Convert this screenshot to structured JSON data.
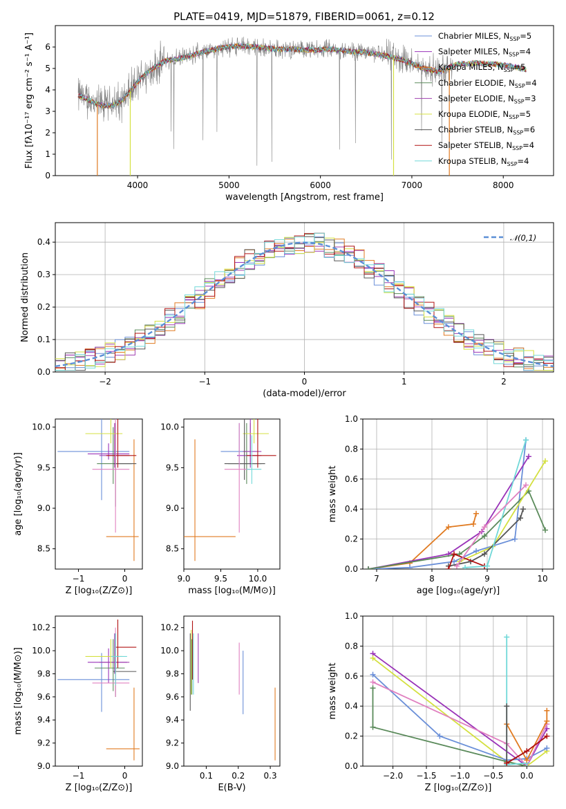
{
  "title": "PLATE=0419, MJD=51879, FIBERID=0061, z=0.12",
  "colors": {
    "chabrier_miles": "#6a8fd8",
    "salpeter_miles": "#9932b8",
    "kroupa_miles": "#e07a20",
    "chabrier_elodie": "#5a8a5a",
    "salpeter_elodie": "#a040b0",
    "kroupa_elodie": "#d4e040",
    "chabrier_stelib": "#555555",
    "salpeter_stelib": "#b01010",
    "kroupa_stelib": "#70d8d8",
    "data": "#808080",
    "pink": "#e080c0",
    "grid": "#b0b0b0",
    "normal_curve": "#5b8fd6"
  },
  "chart_data": [
    {
      "name": "spectrum",
      "type": "line",
      "title": "PLATE=0419, MJD=51879, FIBERID=0061, z=0.12",
      "xlabel": "wavelength [Angstrom, rest frame]",
      "ylabel": "Flux [fλ10⁻¹⁷ erg cm⁻² s⁻¹ A⁻¹]",
      "xlim": [
        3100,
        8550
      ],
      "ylim": [
        0,
        7
      ],
      "xticks": [
        "4000",
        "5000",
        "6000",
        "7000",
        "8000"
      ],
      "yticks": [
        "0",
        "1",
        "2",
        "3",
        "4",
        "5",
        "6"
      ],
      "legend_position": "top-right",
      "legend": [
        {
          "base": "Chabrier MILES, N",
          "sub": "SSP",
          "tail": "=5"
        },
        {
          "base": "Salpeter MILES, N",
          "sub": "SSP",
          "tail": "=4"
        },
        {
          "base": "Kroupa MILES, N",
          "sub": "SSP",
          "tail": "=5"
        },
        {
          "base": "Chabrier ELODIE, N",
          "sub": "SSP",
          "tail": "=4"
        },
        {
          "base": "Salpeter ELODIE, N",
          "sub": "SSP",
          "tail": "=3"
        },
        {
          "base": "Kroupa ELODIE, N",
          "sub": "SSP",
          "tail": "=5"
        },
        {
          "base": "Chabrier STELIB, N",
          "sub": "SSP",
          "tail": "=6"
        },
        {
          "base": "Salpeter STELIB, N",
          "sub": "SSP",
          "tail": "=4"
        },
        {
          "base": "Kroupa STELIB, N",
          "sub": "SSP",
          "tail": "=4"
        }
      ],
      "continuum": {
        "x": [
          3350,
          3450,
          3550,
          3650,
          3750,
          3850,
          3950,
          4050,
          4150,
          4300,
          4500,
          4700,
          4900,
          5100,
          5300,
          5500,
          5700,
          5900,
          6100,
          6300,
          6500,
          6700,
          6900,
          7100,
          7300,
          7500,
          7700,
          7900,
          8100,
          8250
        ],
        "y": [
          3.75,
          3.55,
          3.35,
          3.25,
          3.3,
          3.6,
          4.1,
          4.6,
          4.95,
          5.35,
          5.5,
          5.75,
          5.95,
          6.05,
          6.0,
          5.9,
          5.9,
          5.85,
          5.9,
          5.8,
          5.75,
          5.6,
          5.4,
          5.05,
          4.85,
          5.2,
          5.25,
          5.2,
          5.1,
          4.95
        ]
      }
    },
    {
      "name": "residual-histogram",
      "type": "bar",
      "xlabel": "(data-model)/error",
      "ylabel": "Normed distribution",
      "xlim": [
        -2.5,
        2.5
      ],
      "ylim": [
        0,
        0.46
      ],
      "xticks": [
        "−2",
        "−1",
        "0",
        "1",
        "2"
      ],
      "yticks": [
        "0.0",
        "0.1",
        "0.2",
        "0.3",
        "0.4"
      ],
      "legend_position": "top-right",
      "curve_label": "𝒩(0,1)",
      "bin_width": 0.1,
      "bin_start": -2.5
    },
    {
      "name": "age-vs-Z",
      "type": "scatter",
      "xlabel": "Z [log₁₀(Z/Z⊙)]",
      "ylabel": "age  [log₁₀(age/yr)]",
      "xlim": [
        -1.5,
        0.38
      ],
      "ylim": [
        8.25,
        10.1
      ],
      "xticks": [
        "−1",
        "0"
      ],
      "yticks": [
        "8.5",
        "9.0",
        "9.5",
        "10.0"
      ],
      "points": [
        {
          "c": "chabrier_miles",
          "x": -0.5,
          "y": 9.7,
          "xlo": -1.45,
          "xhi": 0.1,
          "ylo": 9.1,
          "yhi": 10.1
        },
        {
          "c": "salpeter_miles",
          "x": -0.35,
          "y": 9.67,
          "xlo": -0.8,
          "xhi": 0.1,
          "ylo": 9.6,
          "yhi": 9.8
        },
        {
          "c": "kroupa_miles",
          "x": 0.2,
          "y": 8.65,
          "xlo": -0.4,
          "xhi": 0.3,
          "ylo": 8.35,
          "yhi": 9.85
        },
        {
          "c": "chabrier_elodie",
          "x": -0.25,
          "y": 9.55,
          "xlo": -0.6,
          "xhi": 0.15,
          "ylo": 9.3,
          "yhi": 10.0
        },
        {
          "c": "salpeter_elodie",
          "x": -0.22,
          "y": 9.65,
          "xlo": -0.55,
          "xhi": 0.1,
          "ylo": 9.5,
          "yhi": 10.05
        },
        {
          "c": "kroupa_elodie",
          "x": -0.3,
          "y": 9.92,
          "xlo": -0.85,
          "xhi": -0.05,
          "ylo": 9.8,
          "yhi": 10.1
        },
        {
          "c": "chabrier_stelib",
          "x": -0.2,
          "y": 9.55,
          "xlo": -0.25,
          "xhi": 0.25,
          "ylo": 9.02,
          "yhi": 10.05
        },
        {
          "c": "salpeter_stelib",
          "x": -0.15,
          "y": 9.65,
          "xlo": -0.4,
          "xhi": 0.25,
          "ylo": 9.5,
          "yhi": 10.1
        },
        {
          "c": "pink",
          "x": -0.2,
          "y": 9.48,
          "xlo": -0.7,
          "xhi": 0.1,
          "ylo": 8.7,
          "yhi": 10.1
        }
      ]
    },
    {
      "name": "age-vs-mass",
      "type": "scatter",
      "xlabel": "mass [log₁₀(M/M⊙)]",
      "ylabel": "",
      "xlim": [
        9.0,
        10.3
      ],
      "ylim": [
        8.25,
        10.1
      ],
      "xticks": [
        "9.0",
        "9.5",
        "10.0"
      ],
      "yticks": [
        "8.5",
        "9.0",
        "9.5",
        "10.0"
      ],
      "points": [
        {
          "c": "chabrier_miles",
          "x": 9.75,
          "y": 9.7,
          "xlo": 9.5,
          "xhi": 9.98,
          "ylo": 9.5,
          "yhi": 10.05
        },
        {
          "c": "salpeter_miles",
          "x": 9.9,
          "y": 9.65,
          "xlo": 9.72,
          "xhi": 10.05,
          "ylo": 9.5,
          "yhi": 10.1
        },
        {
          "c": "kroupa_miles",
          "x": 9.15,
          "y": 8.65,
          "xlo": 9.0,
          "xhi": 9.7,
          "ylo": 8.35,
          "yhi": 9.85
        },
        {
          "c": "chabrier_elodie",
          "x": 9.85,
          "y": 9.55,
          "xlo": 9.6,
          "xhi": 10.05,
          "ylo": 9.3,
          "yhi": 10.05
        },
        {
          "c": "salpeter_elodie",
          "x": 9.9,
          "y": 9.7,
          "xlo": 9.8,
          "xhi": 10.05,
          "ylo": 9.55,
          "yhi": 10.05
        },
        {
          "c": "kroupa_elodie",
          "x": 9.95,
          "y": 9.92,
          "xlo": 9.8,
          "xhi": 10.15,
          "ylo": 9.8,
          "yhi": 10.1
        },
        {
          "c": "chabrier_stelib",
          "x": 9.82,
          "y": 9.55,
          "xlo": 9.55,
          "xhi": 10.1,
          "ylo": 9.35,
          "yhi": 10.1
        },
        {
          "c": "salpeter_stelib",
          "x": 10.0,
          "y": 9.65,
          "xlo": 9.85,
          "xhi": 10.25,
          "ylo": 9.5,
          "yhi": 10.1
        },
        {
          "c": "pink",
          "x": 9.75,
          "y": 9.48,
          "xlo": 9.55,
          "xhi": 9.9,
          "ylo": 8.7,
          "yhi": 10.05
        },
        {
          "c": "kroupa_stelib",
          "x": 9.92,
          "y": 9.48,
          "xlo": 9.85,
          "xhi": 10.05,
          "ylo": 9.3,
          "yhi": 9.9
        }
      ]
    },
    {
      "name": "weight-vs-age",
      "type": "line",
      "xlabel": "age  [log₁₀(age/yr)]",
      "ylabel": "mass weight",
      "xlim": [
        6.75,
        10.2
      ],
      "ylim": [
        0,
        1.0
      ],
      "xticks": [
        "7",
        "8",
        "9",
        "10"
      ],
      "yticks": [
        "0.0",
        "0.2",
        "0.4",
        "0.6",
        "0.8",
        "1.0"
      ],
      "series": [
        {
          "c": "kroupa_miles",
          "x": [
            6.85,
            7.6,
            8.3,
            8.75,
            8.8
          ],
          "y": [
            0.0,
            0.04,
            0.28,
            0.3,
            0.37
          ]
        },
        {
          "c": "chabrier_miles",
          "x": [
            6.85,
            7.6,
            8.4,
            8.8,
            9.5,
            9.7
          ],
          "y": [
            0.0,
            0.01,
            0.05,
            0.12,
            0.2,
            0.86
          ]
        },
        {
          "c": "salpeter_miles",
          "x": [
            6.85,
            8.3,
            8.9,
            9.75
          ],
          "y": [
            0.0,
            0.1,
            0.25,
            0.75
          ]
        },
        {
          "c": "chabrier_elodie",
          "x": [
            6.85,
            8.5,
            8.95,
            9.75,
            10.05
          ],
          "y": [
            0.0,
            0.1,
            0.22,
            0.52,
            0.26
          ]
        },
        {
          "c": "kroupa_elodie",
          "x": [
            8.5,
            9.1,
            10.05
          ],
          "y": [
            0.05,
            0.15,
            0.72
          ]
        },
        {
          "c": "chabrier_stelib",
          "x": [
            8.3,
            8.7,
            8.95,
            9.6,
            9.65
          ],
          "y": [
            0.02,
            0.05,
            0.1,
            0.34,
            0.4
          ]
        },
        {
          "c": "salpeter_stelib",
          "x": [
            8.3,
            8.4,
            8.95
          ],
          "y": [
            0.0,
            0.1,
            0.02
          ]
        },
        {
          "c": "kroupa_stelib",
          "x": [
            8.6,
            9.0,
            9.7
          ],
          "y": [
            0.01,
            0.02,
            0.86
          ]
        },
        {
          "c": "pink",
          "x": [
            8.45,
            8.95,
            9.7
          ],
          "y": [
            0.02,
            0.28,
            0.56
          ]
        }
      ]
    },
    {
      "name": "mass-vs-Z",
      "type": "scatter",
      "xlabel": "Z [log₁₀(Z/Z⊙)]",
      "ylabel": "mass [log₁₀(M/M⊙)]",
      "xlim": [
        -1.5,
        0.38
      ],
      "ylim": [
        9.0,
        10.3
      ],
      "xticks": [
        "−1",
        "0"
      ],
      "yticks": [
        "9.0",
        "9.2",
        "9.4",
        "9.6",
        "9.8",
        "10.0",
        "10.2"
      ],
      "points": [
        {
          "c": "chabrier_miles",
          "x": -0.5,
          "y": 9.75,
          "xlo": -1.45,
          "xhi": 0.1,
          "ylo": 9.47,
          "yhi": 9.98
        },
        {
          "c": "salpeter_miles",
          "x": -0.35,
          "y": 9.9,
          "xlo": -0.8,
          "xhi": 0.05,
          "ylo": 9.72,
          "yhi": 10.02
        },
        {
          "c": "kroupa_miles",
          "x": 0.2,
          "y": 9.15,
          "xlo": -0.4,
          "xhi": 0.32,
          "ylo": 9.05,
          "yhi": 9.68
        },
        {
          "c": "chabrier_elodie",
          "x": -0.25,
          "y": 9.85,
          "xlo": -0.65,
          "xhi": 0.0,
          "ylo": 9.65,
          "yhi": 10.1
        },
        {
          "c": "salpeter_elodie",
          "x": -0.22,
          "y": 9.9,
          "xlo": -0.55,
          "xhi": 0.1,
          "ylo": 9.8,
          "yhi": 10.15
        },
        {
          "c": "kroupa_elodie",
          "x": -0.3,
          "y": 9.95,
          "xlo": -0.85,
          "xhi": -0.05,
          "ylo": 9.85,
          "yhi": 10.1
        },
        {
          "c": "chabrier_stelib",
          "x": -0.2,
          "y": 9.82,
          "xlo": -0.25,
          "xhi": 0.25,
          "ylo": 9.6,
          "yhi": 10.15
        },
        {
          "c": "salpeter_stelib",
          "x": -0.15,
          "y": 10.03,
          "xlo": -0.2,
          "xhi": 0.25,
          "ylo": 9.85,
          "yhi": 10.27
        },
        {
          "c": "pink",
          "x": -0.2,
          "y": 9.72,
          "xlo": -0.7,
          "xhi": 0.1,
          "ylo": 9.6,
          "yhi": 10.2
        },
        {
          "c": "kroupa_stelib",
          "x": -0.2,
          "y": 9.95,
          "xlo": -0.3,
          "xhi": 0.05,
          "ylo": 9.7,
          "yhi": 10.15
        }
      ]
    },
    {
      "name": "mass-vs-ebv",
      "type": "scatter",
      "xlabel": "E(B-V)",
      "ylabel": "",
      "xlim": [
        0.03,
        0.33
      ],
      "ylim": [
        9.0,
        10.3
      ],
      "xticks": [
        "0.1",
        "0.2",
        "0.3"
      ],
      "yticks": [
        "9.0",
        "9.2",
        "9.4",
        "9.6",
        "9.8",
        "10.0",
        "10.2"
      ],
      "points": [
        {
          "c": "chabrier_miles",
          "x": 0.215,
          "y": 9.75,
          "ylo": 9.45,
          "yhi": 10.0
        },
        {
          "c": "pink",
          "x": 0.203,
          "y": 9.85,
          "ylo": 9.62,
          "yhi": 10.07
        },
        {
          "c": "kroupa_miles",
          "x": 0.315,
          "y": 9.35,
          "ylo": 9.05,
          "yhi": 9.68
        },
        {
          "c": "salpeter_elodie",
          "x": 0.075,
          "y": 9.9,
          "ylo": 9.72,
          "yhi": 10.15
        },
        {
          "c": "chabrier_stelib",
          "x": 0.05,
          "y": 9.8,
          "ylo": 9.48,
          "yhi": 10.15
        },
        {
          "c": "salpeter_stelib",
          "x": 0.057,
          "y": 10.0,
          "ylo": 9.75,
          "yhi": 10.26
        },
        {
          "c": "kroupa_elodie",
          "x": 0.053,
          "y": 9.9,
          "ylo": 9.62,
          "yhi": 10.18
        },
        {
          "c": "kroupa_stelib",
          "x": 0.06,
          "y": 9.9,
          "ylo": 9.62,
          "yhi": 10.15
        },
        {
          "c": "chabrier_elodie",
          "x": 0.055,
          "y": 9.85,
          "ylo": 9.62,
          "yhi": 10.1
        }
      ]
    },
    {
      "name": "weight-vs-Z",
      "type": "line",
      "xlabel": "Z [log₁₀(Z/Z⊙)]",
      "ylabel": "mass weight",
      "xlim": [
        -2.45,
        0.4
      ],
      "ylim": [
        0,
        1.0
      ],
      "xticks": [
        "−2.0",
        "−1.5",
        "−1.0",
        "−0.5",
        "0.0"
      ],
      "yticks": [
        "0.0",
        "0.2",
        "0.4",
        "0.6",
        "0.8",
        "1.0"
      ],
      "series": [
        {
          "c": "salpeter_miles",
          "x": [
            -2.3,
            0.0,
            0.3
          ],
          "y": [
            0.75,
            0.0,
            0.25
          ]
        },
        {
          "c": "kroupa_elodie",
          "x": [
            -2.3,
            -0.3,
            0.0,
            0.3
          ],
          "y": [
            0.72,
            0.03,
            0.0,
            0.1
          ]
        },
        {
          "c": "chabrier_miles",
          "x": [
            -2.3,
            -1.3,
            -0.3,
            0.0,
            0.3
          ],
          "y": [
            0.61,
            0.2,
            0.04,
            0.05,
            0.12
          ]
        },
        {
          "c": "pink",
          "x": [
            -2.3,
            -0.3,
            0.0,
            0.3
          ],
          "y": [
            0.56,
            0.15,
            0.0,
            0.28
          ]
        },
        {
          "c": "chabrier_elodie",
          "x": [
            -2.3,
            -2.3,
            -0.3,
            0.0
          ],
          "y": [
            0.52,
            0.26,
            0.03,
            0.0
          ]
        },
        {
          "c": "kroupa_stelib",
          "x": [
            -0.3,
            -0.3,
            0.0
          ],
          "y": [
            0.86,
            0.01,
            0.02
          ]
        },
        {
          "c": "kroupa_miles",
          "x": [
            -0.3,
            0.0,
            0.3,
            0.3
          ],
          "y": [
            0.28,
            0.04,
            0.3,
            0.37
          ]
        },
        {
          "c": "chabrier_stelib",
          "x": [
            -0.3,
            -0.3,
            0.0
          ],
          "y": [
            0.4,
            0.02,
            0.1
          ]
        },
        {
          "c": "salpeter_stelib",
          "x": [
            -0.3,
            0.0,
            0.3
          ],
          "y": [
            0.02,
            0.1,
            0.2
          ]
        }
      ]
    }
  ]
}
